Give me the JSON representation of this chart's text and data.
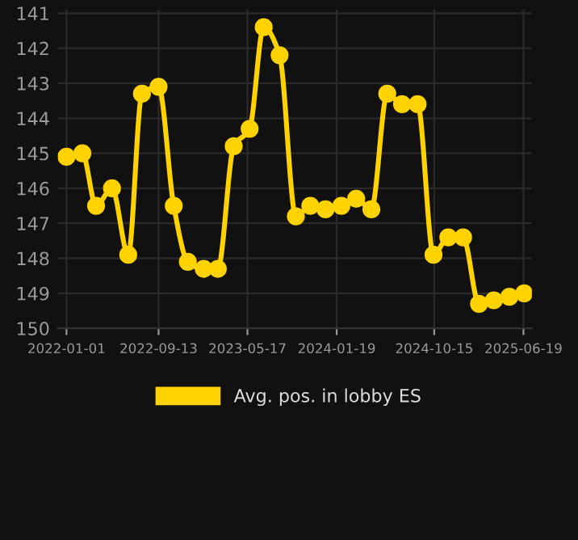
{
  "chart_data": {
    "type": "line",
    "x": [
      "2022-01-01",
      "2022-02-14",
      "2022-03-24",
      "2022-05-07",
      "2022-06-21",
      "2022-07-29",
      "2022-09-13",
      "2022-10-25",
      "2022-12-03",
      "2023-01-16",
      "2023-02-24",
      "2023-04-09",
      "2023-05-23",
      "2023-07-01",
      "2023-08-14",
      "2023-09-28",
      "2023-11-07",
      "2023-12-19",
      "2024-02-01",
      "2024-03-13",
      "2024-04-24",
      "2024-06-07",
      "2024-07-18",
      "2024-08-30",
      "2024-10-13",
      "2024-11-23",
      "2025-01-03",
      "2025-02-16",
      "2025-03-29",
      "2025-05-11",
      "2025-06-21"
    ],
    "series": [
      {
        "name": "Avg. pos. in lobby ES",
        "color": "#ffd200",
        "values": [
          145.1,
          145.0,
          146.5,
          146.0,
          147.9,
          143.3,
          143.1,
          146.5,
          148.1,
          148.3,
          148.3,
          144.8,
          144.3,
          141.4,
          142.2,
          146.8,
          146.5,
          146.6,
          146.5,
          146.3,
          146.6,
          143.3,
          143.6,
          143.6,
          147.9,
          147.4,
          147.4,
          149.3,
          149.2,
          149.1,
          149.0
        ]
      }
    ],
    "ylim": [
      150,
      140.9
    ],
    "yticks": [
      141,
      142,
      143,
      144,
      145,
      146,
      147,
      148,
      149,
      150
    ],
    "xlim": [
      "2021-12-08",
      "2025-07-12"
    ],
    "xticks": [
      {
        "value": "2022-01-01",
        "label": "2022-01-01"
      },
      {
        "value": "2022-09-13",
        "label": "2022-09-13"
      },
      {
        "value": "2023-05-17",
        "label": "2023-05-17"
      },
      {
        "value": "2024-01-19",
        "label": "2024-01-19"
      },
      {
        "value": "2024-10-15",
        "label": "2024-10-15"
      },
      {
        "value": "2025-06-19",
        "label": "2025-06-19"
      }
    ],
    "grid": true,
    "legend": "bottom",
    "marker": "circle",
    "line_style": "solid"
  }
}
